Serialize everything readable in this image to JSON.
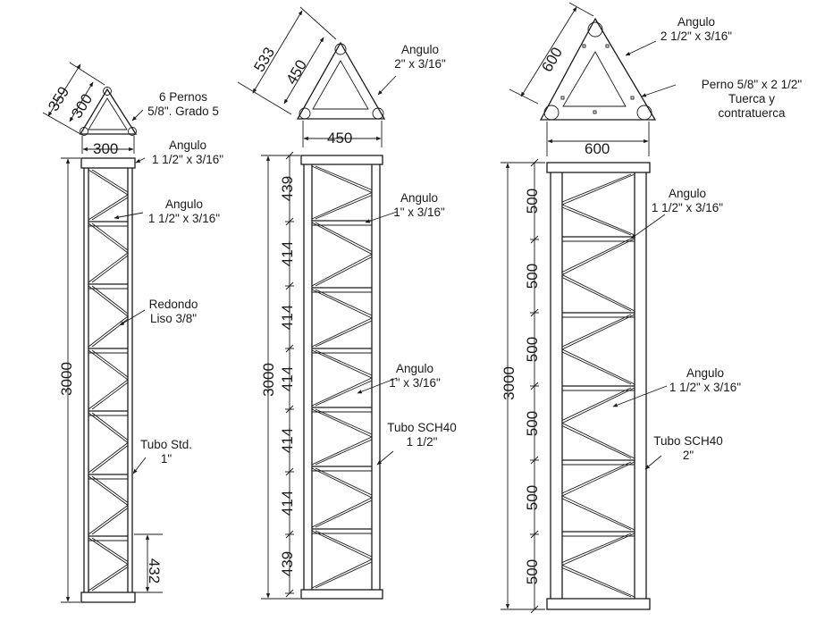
{
  "towers": [
    {
      "id": "t300",
      "dims": {
        "side_a": "359",
        "side_b": "300",
        "width": "300",
        "height": "3000",
        "segment": "432"
      },
      "labels": {
        "bolts": [
          "6 Pernos",
          "5/8\". Grado 5"
        ],
        "angle_top": [
          "Angulo",
          "1 1/2\" x 3/16\""
        ],
        "angle_mid": [
          "Angulo",
          "1 1/2\" x 3/16\""
        ],
        "round": [
          "Redondo",
          "Liso 3/8\""
        ],
        "tube": [
          "Tubo Std.",
          "1\""
        ]
      }
    },
    {
      "id": "t450",
      "dims": {
        "side_a": "533",
        "side_b": "450",
        "width": "450",
        "height": "3000",
        "segments": [
          "439",
          "414",
          "414",
          "414",
          "414",
          "414",
          "439"
        ]
      },
      "labels": {
        "angle_top": [
          "Angulo",
          "2\" x 3/16\""
        ],
        "angle_a": [
          "Angulo",
          "1\" x 3/16\""
        ],
        "angle_b": [
          "Angulo",
          "1\" x 3/16\""
        ],
        "tube": [
          "Tubo SCH40",
          "1 1/2\""
        ]
      }
    },
    {
      "id": "t600",
      "dims": {
        "side_a": "600",
        "width": "600",
        "height": "3000",
        "segments": [
          "500",
          "500",
          "500",
          "500",
          "500",
          "500"
        ]
      },
      "labels": {
        "angle_top": [
          "Angulo",
          "2 1/2\" x 3/16\""
        ],
        "bolt": [
          "Perno 5/8\" x 2 1/2\"",
          "Tuerca y",
          "contratuerca"
        ],
        "angle_a": [
          "Angulo",
          "1 1/2\" x 3/16\""
        ],
        "angle_b": [
          "Angulo",
          "1 1/2\" x 3/16\""
        ],
        "tube": [
          "Tubo SCH40",
          "2\""
        ]
      }
    }
  ]
}
